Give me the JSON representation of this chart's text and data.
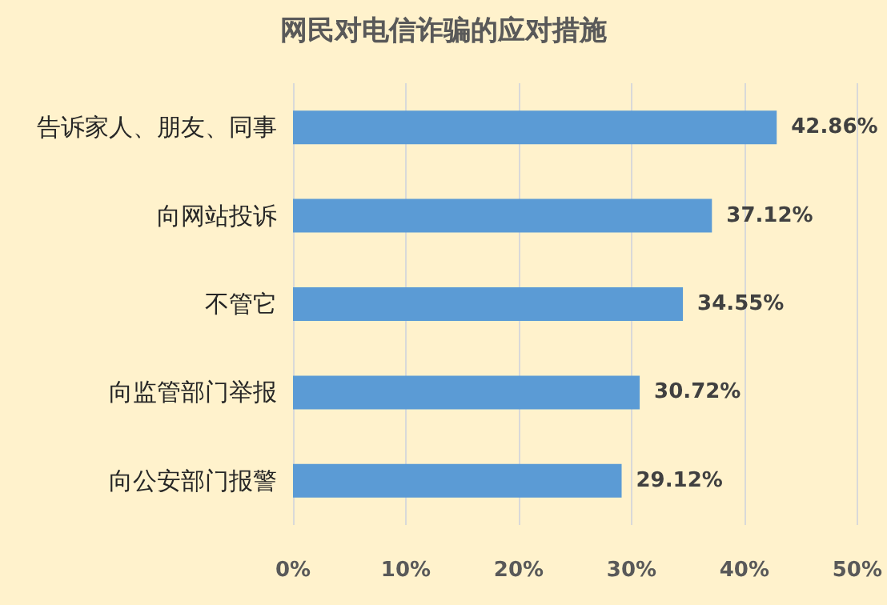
{
  "chart_data": {
    "type": "bar",
    "orientation": "horizontal",
    "title": "网民对电信诈骗的应对措施",
    "categories": [
      "告诉家人、朋友、同事",
      "向网站投诉",
      "不管它",
      "向监管部门举报",
      "向公安部门报警"
    ],
    "values": [
      42.86,
      37.12,
      34.55,
      30.72,
      29.12
    ],
    "value_labels": [
      "42.86%",
      "37.12%",
      "34.55%",
      "30.72%",
      "29.12%"
    ],
    "color": "#5b9bd5",
    "xlim": [
      0,
      50
    ],
    "xticks": [
      {
        "value": 0,
        "label": "0%"
      },
      {
        "value": 10,
        "label": "10%"
      },
      {
        "value": 20,
        "label": "20%"
      },
      {
        "value": 30,
        "label": "30%"
      },
      {
        "value": 40,
        "label": "40%"
      },
      {
        "value": 50,
        "label": "50%"
      }
    ],
    "grid": "x"
  }
}
